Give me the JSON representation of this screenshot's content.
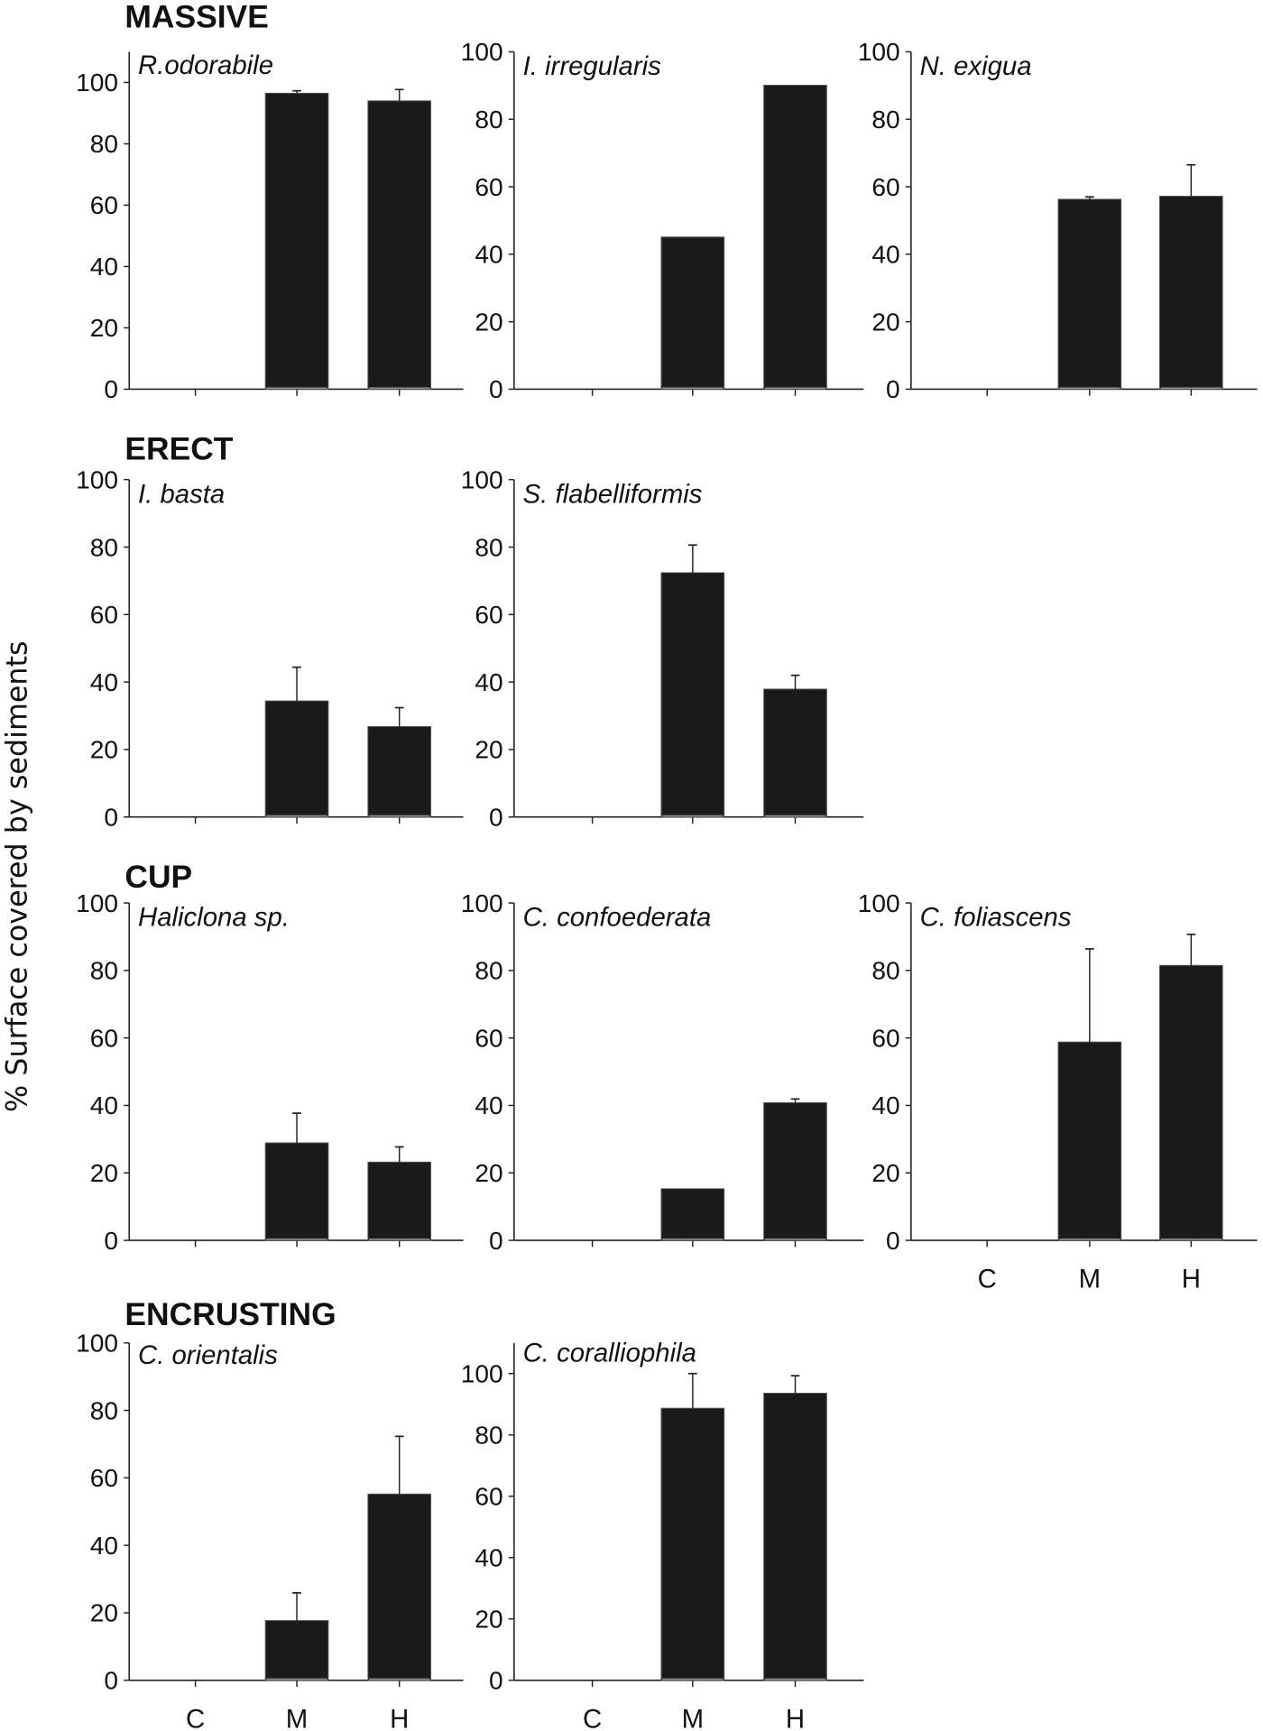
{
  "ylabel": "% Surface covered by sediments",
  "groups": [
    "MASSIVE",
    "ERECT",
    "CUP",
    "ENCRUSTING"
  ],
  "bar_color": "#1a1a1a",
  "chart_data": [
    {
      "type": "bar",
      "group": "MASSIVE",
      "title": "R.odorabile",
      "categories": [
        "C",
        "M",
        "H"
      ],
      "values": [
        0,
        96.5,
        94.0
      ],
      "error_upper": [
        null,
        97.3,
        97.7
      ],
      "ylim": [
        0,
        110
      ],
      "yticks": [
        0,
        20,
        40,
        60,
        80,
        100
      ]
    },
    {
      "type": "bar",
      "group": "MASSIVE",
      "title": "I. irregularis",
      "categories": [
        "C",
        "M",
        "H"
      ],
      "values": [
        0,
        45.1,
        90.1
      ],
      "error_upper": [
        null,
        null,
        null
      ],
      "ylim": [
        0,
        100
      ],
      "yticks": [
        0,
        20,
        40,
        60,
        80,
        100
      ]
    },
    {
      "type": "bar",
      "group": "MASSIVE",
      "title": "N. exigua",
      "categories": [
        "C",
        "M",
        "H"
      ],
      "values": [
        0,
        56.3,
        57.2
      ],
      "error_upper": [
        null,
        57.0,
        66.5
      ],
      "ylim": [
        0,
        100
      ],
      "yticks": [
        0,
        20,
        40,
        60,
        80,
        100
      ]
    },
    {
      "type": "bar",
      "group": "ERECT",
      "title": "I. basta",
      "categories": [
        "C",
        "M",
        "H"
      ],
      "values": [
        0,
        34.4,
        26.8
      ],
      "error_upper": [
        null,
        44.4,
        32.4
      ],
      "ylim": [
        0,
        100
      ],
      "yticks": [
        0,
        20,
        40,
        60,
        80,
        100
      ]
    },
    {
      "type": "bar",
      "group": "ERECT",
      "title": "S. flabelliformis",
      "categories": [
        "C",
        "M",
        "H"
      ],
      "values": [
        0,
        72.4,
        37.9
      ],
      "error_upper": [
        null,
        80.6,
        42.0
      ],
      "ylim": [
        0,
        100
      ],
      "yticks": [
        0,
        20,
        40,
        60,
        80,
        100
      ]
    },
    {
      "type": "bar",
      "group": "CUP",
      "title": "Haliclona sp.",
      "categories": [
        "C",
        "M",
        "H"
      ],
      "values": [
        0,
        28.9,
        23.2
      ],
      "error_upper": [
        null,
        37.7,
        27.7
      ],
      "ylim": [
        0,
        100
      ],
      "yticks": [
        0,
        20,
        40,
        60,
        80,
        100
      ]
    },
    {
      "type": "bar",
      "group": "CUP",
      "title": "C. confoederata",
      "categories": [
        "C",
        "M",
        "H"
      ],
      "values": [
        0,
        15.3,
        40.8
      ],
      "error_upper": [
        null,
        null,
        41.9
      ],
      "ylim": [
        0,
        100
      ],
      "yticks": [
        0,
        20,
        40,
        60,
        80,
        100
      ]
    },
    {
      "type": "bar",
      "group": "CUP",
      "title": "C. foliascens",
      "categories": [
        "C",
        "M",
        "H"
      ],
      "values": [
        0,
        58.8,
        81.5
      ],
      "error_upper": [
        null,
        86.4,
        90.7
      ],
      "ylim": [
        0,
        100
      ],
      "yticks": [
        0,
        20,
        40,
        60,
        80,
        100
      ]
    },
    {
      "type": "bar",
      "group": "ENCRUSTING",
      "title": "C. orientalis",
      "categories": [
        "C",
        "M",
        "H"
      ],
      "values": [
        0,
        17.7,
        55.2
      ],
      "error_upper": [
        null,
        25.9,
        72.3
      ],
      "ylim": [
        0,
        100
      ],
      "yticks": [
        0,
        20,
        40,
        60,
        80,
        100
      ]
    },
    {
      "type": "bar",
      "group": "ENCRUSTING",
      "title": "C. coralliophila",
      "categories": [
        "C",
        "M",
        "H"
      ],
      "values": [
        0,
        88.7,
        93.6
      ],
      "error_upper": [
        null,
        100,
        99.3
      ],
      "ylim": [
        0,
        110
      ],
      "yticks": [
        0,
        20,
        40,
        60,
        80,
        100
      ]
    }
  ]
}
